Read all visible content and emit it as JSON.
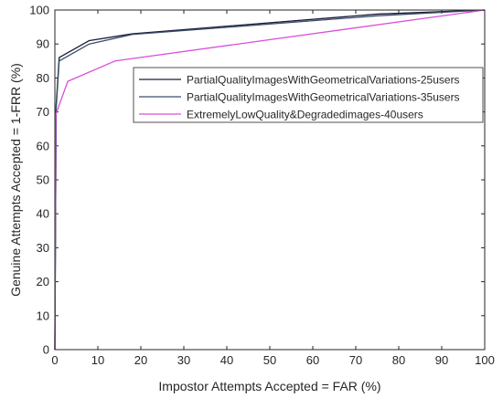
{
  "chart_data": {
    "type": "line",
    "title": "",
    "xlabel": "Impostor Attempts Accepted = FAR (%)",
    "ylabel": "Genuine Attempts Accepted = 1-FRR (%)",
    "xlim": [
      0,
      100
    ],
    "ylim": [
      0,
      100
    ],
    "xticks": [
      0,
      10,
      20,
      30,
      40,
      50,
      60,
      70,
      80,
      90,
      100
    ],
    "yticks": [
      0,
      10,
      20,
      30,
      40,
      50,
      60,
      70,
      80,
      90,
      100
    ],
    "grid": false,
    "legend_position": "upper-right inside axes",
    "series": [
      {
        "name": "PartialQualityImagesWithGeometricalVariations-25users",
        "color": "#1a1a3a",
        "x": [
          0,
          0.3,
          1,
          8,
          18,
          75,
          100
        ],
        "y": [
          0,
          72,
          86,
          91,
          93,
          98.8,
          100
        ]
      },
      {
        "name": "PartialQualityImagesWithGeometricalVariations-35users",
        "color": "#3a4f6a",
        "x": [
          0,
          0.3,
          1,
          8,
          18,
          75,
          100
        ],
        "y": [
          0,
          71,
          85,
          90,
          92.8,
          98.3,
          100
        ]
      },
      {
        "name": "ExtremelyLowQuality&Degradedimages-40users",
        "color": "#d94fd9",
        "x": [
          0,
          0.2,
          1,
          3,
          14,
          100
        ],
        "y": [
          0,
          69,
          72,
          79,
          85,
          100
        ]
      }
    ]
  }
}
